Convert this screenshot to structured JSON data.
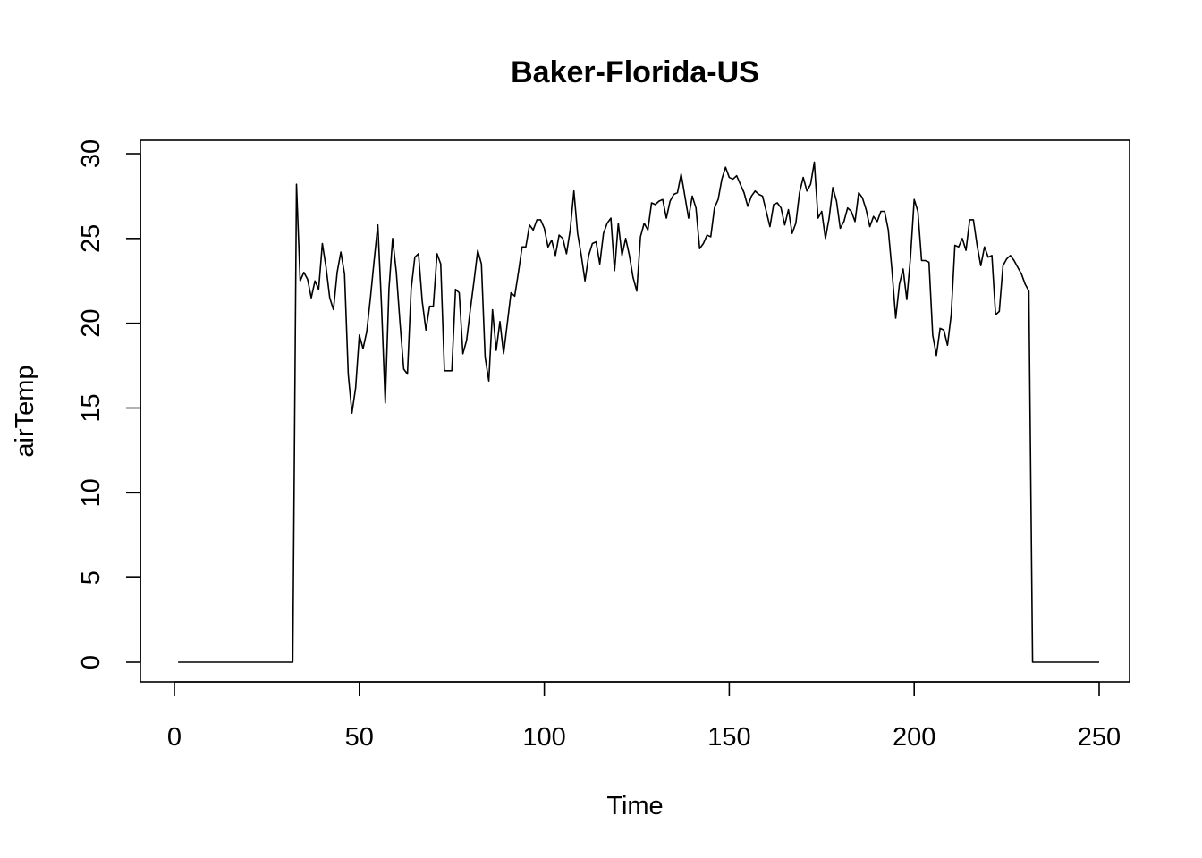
{
  "chart_data": {
    "type": "line",
    "title": "Baker-Florida-US",
    "xlabel": "Time",
    "ylabel": "airTemp",
    "xlim": [
      0,
      250
    ],
    "ylim": [
      0,
      30
    ],
    "x_ticks": [
      0,
      50,
      100,
      150,
      200,
      250
    ],
    "x_tick_labels": [
      "0",
      "50",
      "100",
      "150",
      "200",
      "250"
    ],
    "y_ticks": [
      0,
      5,
      10,
      15,
      20,
      25,
      30
    ],
    "y_tick_labels": [
      "0",
      "5",
      "10",
      "15",
      "20",
      "25",
      "30"
    ],
    "grid": false,
    "legend": "none",
    "line_color": "#000000",
    "series": [
      {
        "x_start": 1,
        "values": [
          0,
          0,
          0,
          0,
          0,
          0,
          0,
          0,
          0,
          0,
          0,
          0,
          0,
          0,
          0,
          0,
          0,
          0,
          0,
          0,
          0,
          0,
          0,
          0,
          0,
          0,
          0,
          0,
          0,
          0,
          0,
          0,
          28.2,
          22.5,
          23.0,
          22.6,
          21.5,
          22.5,
          22.0,
          24.7,
          23.3,
          21.5,
          20.8,
          23.0,
          24.2,
          22.9,
          17.0,
          14.7,
          16.2,
          19.3,
          18.5,
          19.5,
          21.5,
          23.7,
          25.8,
          21.0,
          15.3,
          22.0,
          25.0,
          23.0,
          20.0,
          17.3,
          17.0,
          22.0,
          23.9,
          24.1,
          21.3,
          19.6,
          21.0,
          21.0,
          24.1,
          23.5,
          17.2,
          17.2,
          17.2,
          22.0,
          21.8,
          18.2,
          19.0,
          20.8,
          22.5,
          24.3,
          23.5,
          18.0,
          16.6,
          20.8,
          18.4,
          20.1,
          18.2,
          20.0,
          21.8,
          21.6,
          23.0,
          24.5,
          24.5,
          25.8,
          25.5,
          26.1,
          26.1,
          25.6,
          24.5,
          24.9,
          24.0,
          25.2,
          25.0,
          24.1,
          25.5,
          27.8,
          25.3,
          24.0,
          22.5,
          24.0,
          24.7,
          24.8,
          23.5,
          25.3,
          25.9,
          26.2,
          23.1,
          25.9,
          24.0,
          25.0,
          24.0,
          22.7,
          21.9,
          25.1,
          25.9,
          25.5,
          27.1,
          27.0,
          27.2,
          27.3,
          26.2,
          27.2,
          27.6,
          27.7,
          28.8,
          27.5,
          26.2,
          27.5,
          26.8,
          24.4,
          24.7,
          25.2,
          25.1,
          26.8,
          27.3,
          28.5,
          29.2,
          28.6,
          28.5,
          28.7,
          28.2,
          27.7,
          26.9,
          27.5,
          27.8,
          27.6,
          27.5,
          26.6,
          25.7,
          27.0,
          27.1,
          26.8,
          25.8,
          26.7,
          25.3,
          25.9,
          27.7,
          28.6,
          27.8,
          28.2,
          29.5,
          26.2,
          26.6,
          25.0,
          26.2,
          28.0,
          27.2,
          25.6,
          26.0,
          26.8,
          26.6,
          26.0,
          27.7,
          27.4,
          26.7,
          25.7,
          26.3,
          26.0,
          26.6,
          26.6,
          25.5,
          23.1,
          20.3,
          22.3,
          23.2,
          21.4,
          23.9,
          27.3,
          26.6,
          23.7,
          23.7,
          23.6,
          19.3,
          18.1,
          19.7,
          19.6,
          18.7,
          20.5,
          24.6,
          24.5,
          25.0,
          24.3,
          26.1,
          26.1,
          24.6,
          23.4,
          24.5,
          23.9,
          24.0,
          20.5,
          20.7,
          23.4,
          23.8,
          24.0,
          23.7,
          23.3,
          22.9,
          22.3,
          21.9,
          0,
          0,
          0,
          0,
          0,
          0,
          0,
          0,
          0,
          0,
          0,
          0,
          0,
          0,
          0,
          0,
          0,
          0,
          0
        ]
      }
    ]
  }
}
